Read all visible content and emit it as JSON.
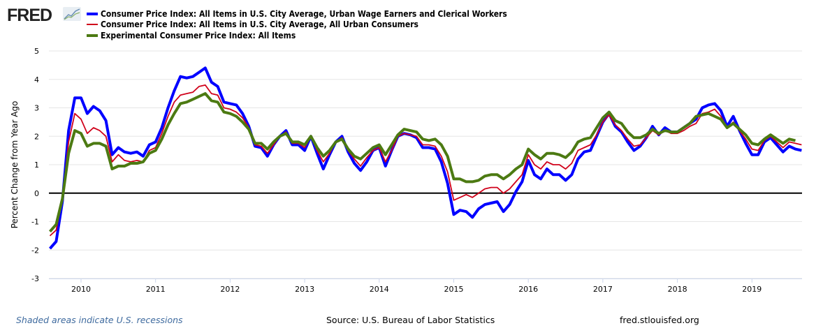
{
  "header": {
    "logo": "FRED"
  },
  "chart_data": {
    "type": "line",
    "ylabel": "Percent Change from Year Ago",
    "ylim": [
      -3,
      5
    ],
    "yticks": [
      "5",
      "4",
      "3",
      "2",
      "1",
      "0",
      "-1",
      "-2",
      "-3"
    ],
    "xticks": [
      "2010",
      "2011",
      "2012",
      "2013",
      "2014",
      "2015",
      "2016",
      "2017",
      "2018",
      "2019"
    ],
    "frequency": "monthly",
    "start": "2009-08",
    "legend_placement": "top",
    "series": [
      {
        "name": "Consumer Price Index: All Items in U.S. City Average, Urban Wage Earners and Clerical Workers",
        "color": "#0000ff",
        "values": [
          -1.95,
          -1.7,
          -0.3,
          2.2,
          3.35,
          3.35,
          2.8,
          3.05,
          2.9,
          2.55,
          1.35,
          1.6,
          1.45,
          1.4,
          1.45,
          1.3,
          1.7,
          1.8,
          2.3,
          3.0,
          3.6,
          4.1,
          4.05,
          4.1,
          4.25,
          4.4,
          3.9,
          3.75,
          3.2,
          3.15,
          3.1,
          2.8,
          2.35,
          1.65,
          1.6,
          1.3,
          1.7,
          2.0,
          2.2,
          1.7,
          1.7,
          1.5,
          2.0,
          1.4,
          0.85,
          1.35,
          1.8,
          2.0,
          1.45,
          1.05,
          0.8,
          1.1,
          1.5,
          1.6,
          0.95,
          1.5,
          2.0,
          2.1,
          2.05,
          1.95,
          1.6,
          1.6,
          1.55,
          1.1,
          0.35,
          -0.75,
          -0.6,
          -0.65,
          -0.85,
          -0.55,
          -0.4,
          -0.35,
          -0.3,
          -0.65,
          -0.4,
          0.05,
          0.4,
          1.15,
          0.65,
          0.5,
          0.85,
          0.65,
          0.65,
          0.45,
          0.65,
          1.2,
          1.45,
          1.5,
          2.0,
          2.5,
          2.8,
          2.35,
          2.15,
          1.8,
          1.5,
          1.65,
          1.95,
          2.35,
          2.05,
          2.3,
          2.15,
          2.15,
          2.3,
          2.45,
          2.6,
          3.0,
          3.1,
          3.15,
          2.9,
          2.35,
          2.7,
          2.2,
          1.75,
          1.35,
          1.35,
          1.8,
          1.95,
          1.7,
          1.45,
          1.65,
          1.55,
          1.5
        ]
      },
      {
        "name": "Consumer Price Index: All Items in U.S. City Average, All Urban Consumers",
        "color": "#d0021b",
        "values": [
          -1.5,
          -1.3,
          -0.2,
          1.8,
          2.8,
          2.6,
          2.1,
          2.3,
          2.2,
          2.0,
          1.1,
          1.35,
          1.15,
          1.1,
          1.15,
          1.1,
          1.5,
          1.6,
          2.1,
          2.7,
          3.2,
          3.45,
          3.5,
          3.55,
          3.75,
          3.8,
          3.5,
          3.45,
          3.0,
          2.95,
          2.85,
          2.65,
          2.3,
          1.7,
          1.65,
          1.4,
          1.7,
          2.0,
          2.15,
          1.75,
          1.75,
          1.6,
          2.0,
          1.5,
          1.1,
          1.4,
          1.8,
          1.95,
          1.5,
          1.2,
          0.95,
          1.25,
          1.5,
          1.6,
          1.1,
          1.5,
          2.0,
          2.1,
          2.05,
          2.0,
          1.7,
          1.7,
          1.65,
          1.3,
          0.75,
          -0.25,
          -0.15,
          -0.05,
          -0.15,
          0.0,
          0.15,
          0.2,
          0.2,
          0.0,
          0.15,
          0.4,
          0.65,
          1.35,
          1.0,
          0.85,
          1.1,
          1.0,
          1.0,
          0.85,
          1.05,
          1.5,
          1.6,
          1.7,
          2.05,
          2.5,
          2.75,
          2.4,
          2.2,
          1.9,
          1.65,
          1.7,
          1.95,
          2.2,
          2.05,
          2.2,
          2.1,
          2.1,
          2.2,
          2.35,
          2.45,
          2.8,
          2.85,
          2.95,
          2.7,
          2.3,
          2.5,
          2.2,
          1.9,
          1.55,
          1.5,
          1.85,
          2.0,
          1.8,
          1.6,
          1.8,
          1.75,
          1.7
        ]
      },
      {
        "name": "Experimental Consumer Price Index: All Items",
        "color": "#4c7a12",
        "values": [
          -1.35,
          -1.1,
          -0.2,
          1.4,
          2.2,
          2.1,
          1.65,
          1.75,
          1.75,
          1.65,
          0.85,
          0.95,
          0.95,
          1.05,
          1.05,
          1.1,
          1.4,
          1.5,
          1.9,
          2.4,
          2.8,
          3.15,
          3.2,
          3.3,
          3.4,
          3.5,
          3.25,
          3.2,
          2.85,
          2.8,
          2.7,
          2.5,
          2.25,
          1.75,
          1.75,
          1.55,
          1.8,
          2.0,
          2.1,
          1.8,
          1.8,
          1.7,
          2.0,
          1.6,
          1.3,
          1.5,
          1.8,
          1.9,
          1.55,
          1.3,
          1.2,
          1.4,
          1.6,
          1.7,
          1.35,
          1.7,
          2.05,
          2.25,
          2.2,
          2.15,
          1.9,
          1.85,
          1.9,
          1.7,
          1.3,
          0.5,
          0.5,
          0.4,
          0.4,
          0.45,
          0.6,
          0.65,
          0.65,
          0.5,
          0.65,
          0.85,
          1.0,
          1.55,
          1.35,
          1.2,
          1.4,
          1.4,
          1.35,
          1.25,
          1.45,
          1.8,
          1.9,
          1.95,
          2.3,
          2.65,
          2.85,
          2.55,
          2.45,
          2.15,
          1.95,
          1.95,
          2.05,
          2.25,
          2.1,
          2.2,
          2.15,
          2.15,
          2.3,
          2.45,
          2.7,
          2.75,
          2.8,
          2.7,
          2.6,
          2.3,
          2.45,
          2.25,
          2.05,
          1.75,
          1.7,
          1.9,
          2.05,
          1.9,
          1.75,
          1.9,
          1.85
        ]
      }
    ]
  },
  "footer": {
    "recessions": "Shaded areas indicate U.S. recessions",
    "source": "Source: U.S. Bureau of Labor Statistics",
    "site": "fred.stlouisfed.org"
  }
}
